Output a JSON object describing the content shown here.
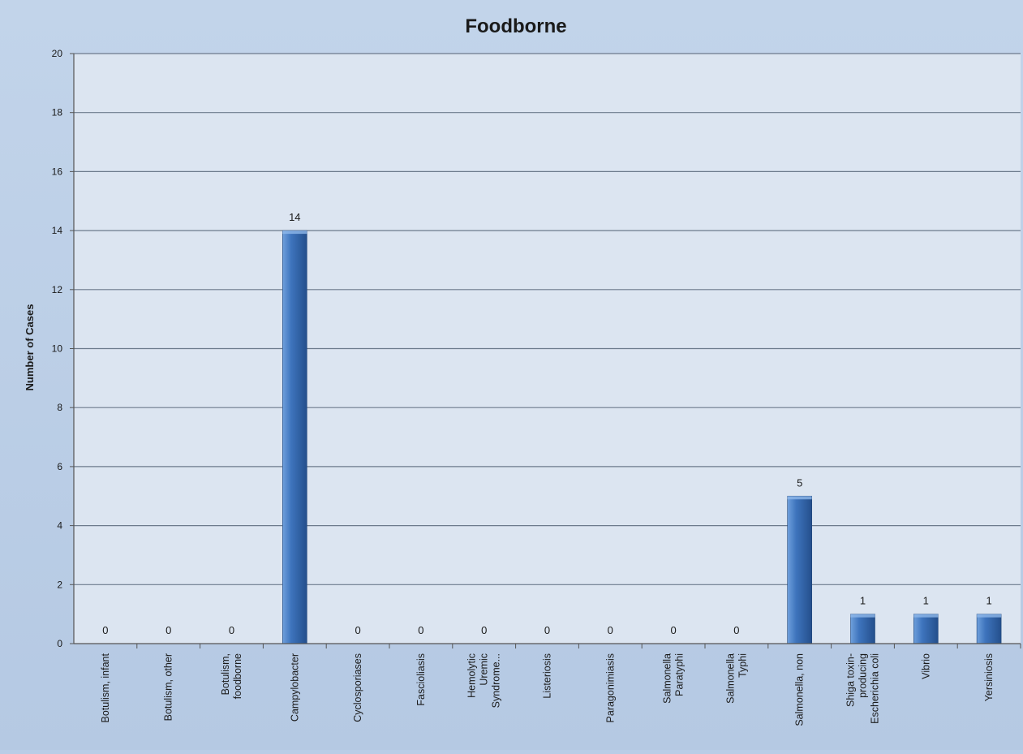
{
  "chart_data": {
    "type": "bar",
    "title": "Foodborne",
    "xlabel": "",
    "ylabel": "Number of Cases",
    "ylim": [
      0,
      20
    ],
    "yticks": [
      "0",
      "2",
      "4",
      "6",
      "8",
      "10",
      "12",
      "14",
      "16",
      "18",
      "20"
    ],
    "grid": true,
    "legend": "none",
    "categories": [
      "Botulism, infant",
      "Botulism, other",
      "Botulism, foodborne",
      "Campylobacter",
      "Cyclosporiases",
      "Fascioliasis",
      "Hemolytic Uremic Syndrome...",
      "Listeriosis",
      "Paragonimiasis",
      "Salmonella Paratyphi",
      "Salmonella Typhi",
      "Salmonella, non",
      "Shiga toxin-producing Escherichia coli",
      "Vibrio",
      "Yersiniosis"
    ],
    "category_label_lines": [
      [
        "Botulism, infant"
      ],
      [
        "Botulism, other"
      ],
      [
        "Botulism,",
        "foodborne"
      ],
      [
        "Campylobacter"
      ],
      [
        "Cyclosporiases"
      ],
      [
        "Fascioliasis"
      ],
      [
        "Hemolytic",
        "Uremic",
        "Syndrome..."
      ],
      [
        "Listeriosis"
      ],
      [
        "Paragonimiasis"
      ],
      [
        "Salmonella",
        "Paratyphi"
      ],
      [
        "Salmonella",
        "Typhi"
      ],
      [
        "Salmonella, non"
      ],
      [
        "Shiga toxin-",
        "producing",
        "Escherichia coli"
      ],
      [
        "Vibrio"
      ],
      [
        "Yersiniosis"
      ]
    ],
    "values": [
      0,
      0,
      0,
      14,
      0,
      0,
      0,
      0,
      0,
      0,
      0,
      5,
      1,
      1,
      1
    ],
    "data_labels": [
      "0",
      "0",
      "0",
      "14",
      "0",
      "0",
      "0",
      "0",
      "0",
      "0",
      "0",
      "5",
      "1",
      "1",
      "1"
    ],
    "colors": {
      "bar_light": "#6fa0dc",
      "bar_mid": "#3e74bd",
      "bar_dark": "#244f8c",
      "plot_bg": "#dce5f1",
      "grid": "#6c7a8c",
      "axis": "#555555",
      "text": "#1a1a1a"
    }
  }
}
